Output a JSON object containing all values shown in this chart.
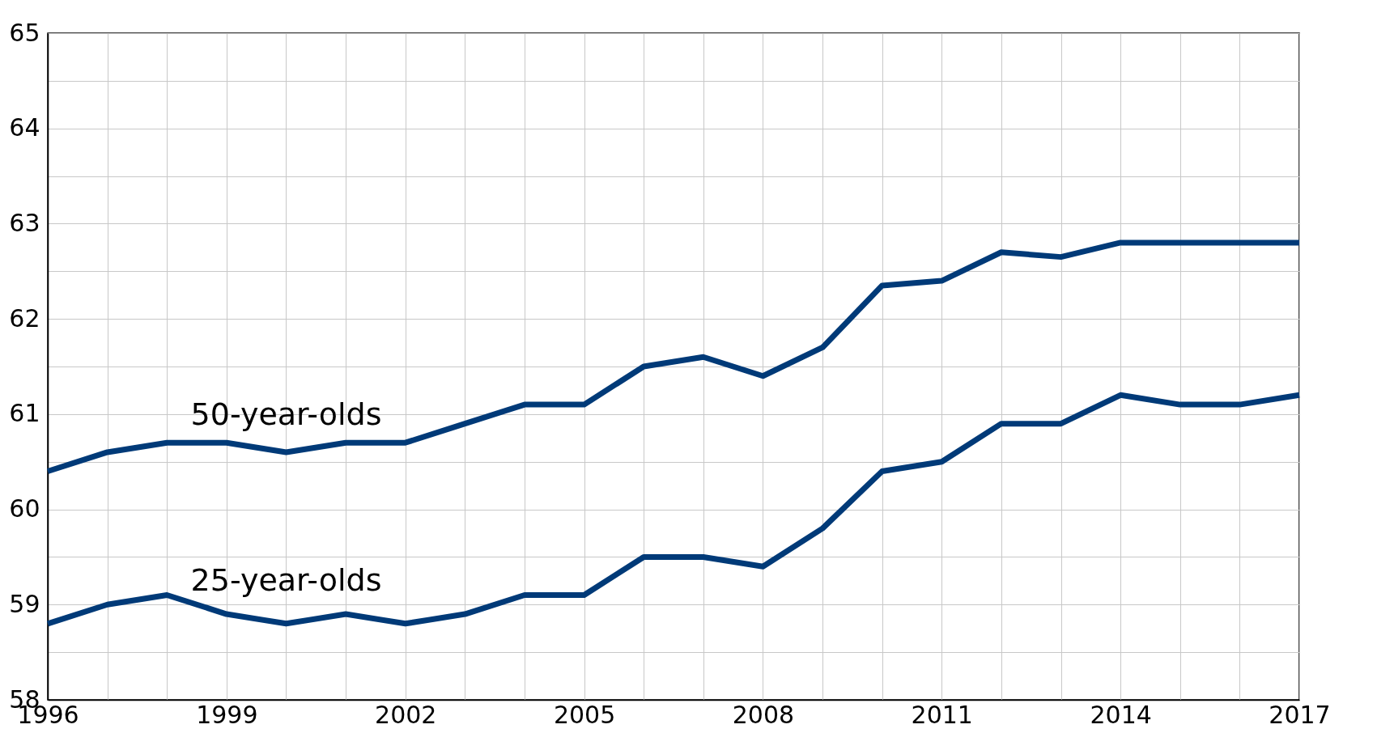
{
  "chart_data": {
    "type": "line",
    "x": [
      1996,
      1997,
      1998,
      1999,
      2000,
      2001,
      2002,
      2003,
      2004,
      2005,
      2006,
      2007,
      2008,
      2009,
      2010,
      2011,
      2012,
      2013,
      2014,
      2015,
      2016,
      2017
    ],
    "series": [
      {
        "name": "50-year-olds",
        "color": "#003a78",
        "values": [
          60.4,
          60.6,
          60.7,
          60.7,
          60.6,
          60.7,
          60.7,
          60.9,
          61.1,
          61.1,
          61.5,
          61.6,
          61.4,
          61.7,
          62.35,
          62.4,
          62.7,
          62.65,
          62.8,
          62.8,
          62.8,
          62.8
        ]
      },
      {
        "name": "25-year-olds",
        "color": "#003a78",
        "values": [
          58.8,
          59.0,
          59.1,
          58.9,
          58.8,
          58.9,
          58.8,
          58.9,
          59.1,
          59.1,
          59.5,
          59.5,
          59.4,
          59.8,
          60.4,
          60.5,
          60.9,
          60.9,
          61.2,
          61.1,
          61.1,
          61.2
        ]
      }
    ],
    "xlim": [
      1996,
      2017
    ],
    "xticks": [
      1996,
      {
        "value": 1997,
        "label": null
      },
      {
        "value": 1998,
        "label": null
      },
      1999,
      {
        "value": 2000,
        "label": null
      },
      {
        "value": 2001,
        "label": null
      },
      2002,
      {
        "value": 2003,
        "label": null
      },
      {
        "value": 2004,
        "label": null
      },
      2005,
      {
        "value": 2006,
        "label": null
      },
      {
        "value": 2007,
        "label": null
      },
      2008,
      {
        "value": 2009,
        "label": null
      },
      {
        "value": 2010,
        "label": null
      },
      2011,
      {
        "value": 2012,
        "label": null
      },
      {
        "value": 2013,
        "label": null
      },
      2014,
      {
        "value": 2015,
        "label": null
      },
      {
        "value": 2016,
        "label": null
      },
      2017
    ],
    "ylim": [
      58,
      65
    ],
    "yticks": [
      58,
      {
        "value": 58.5,
        "label": null
      },
      59,
      {
        "value": 59.5,
        "label": null
      },
      60,
      {
        "value": 60.5,
        "label": null
      },
      61,
      {
        "value": 61.5,
        "label": null
      },
      62,
      {
        "value": 62.5,
        "label": null
      },
      63,
      {
        "value": 63.5,
        "label": null
      },
      64,
      {
        "value": 64.5,
        "label": null
      },
      65
    ],
    "grid": true,
    "marker": "none",
    "line_style": "solid"
  }
}
